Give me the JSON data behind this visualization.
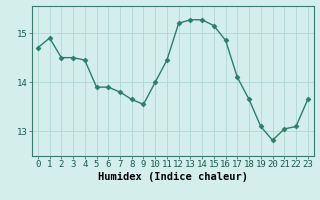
{
  "x": [
    0,
    1,
    2,
    3,
    4,
    5,
    6,
    7,
    8,
    9,
    10,
    11,
    12,
    13,
    14,
    15,
    16,
    17,
    18,
    19,
    20,
    21,
    22,
    23
  ],
  "y": [
    14.7,
    14.9,
    14.5,
    14.5,
    14.45,
    13.9,
    13.9,
    13.8,
    13.65,
    13.55,
    14.0,
    14.45,
    15.2,
    15.27,
    15.27,
    15.15,
    14.85,
    14.1,
    13.65,
    13.1,
    12.82,
    13.05,
    13.1,
    13.65
  ],
  "line_color": "#2d7d6e",
  "marker": "D",
  "markersize": 2.5,
  "linewidth": 1.0,
  "bg_color": "#d4eeec",
  "grid_color": "#b0d8d4",
  "xlabel": "Humidex (Indice chaleur)",
  "xlim": [
    -0.5,
    23.5
  ],
  "ylim": [
    12.5,
    15.55
  ],
  "yticks": [
    13,
    14,
    15
  ],
  "xticks": [
    0,
    1,
    2,
    3,
    4,
    5,
    6,
    7,
    8,
    9,
    10,
    11,
    12,
    13,
    14,
    15,
    16,
    17,
    18,
    19,
    20,
    21,
    22,
    23
  ],
  "xlabel_fontsize": 7.5,
  "tick_fontsize": 6.5
}
